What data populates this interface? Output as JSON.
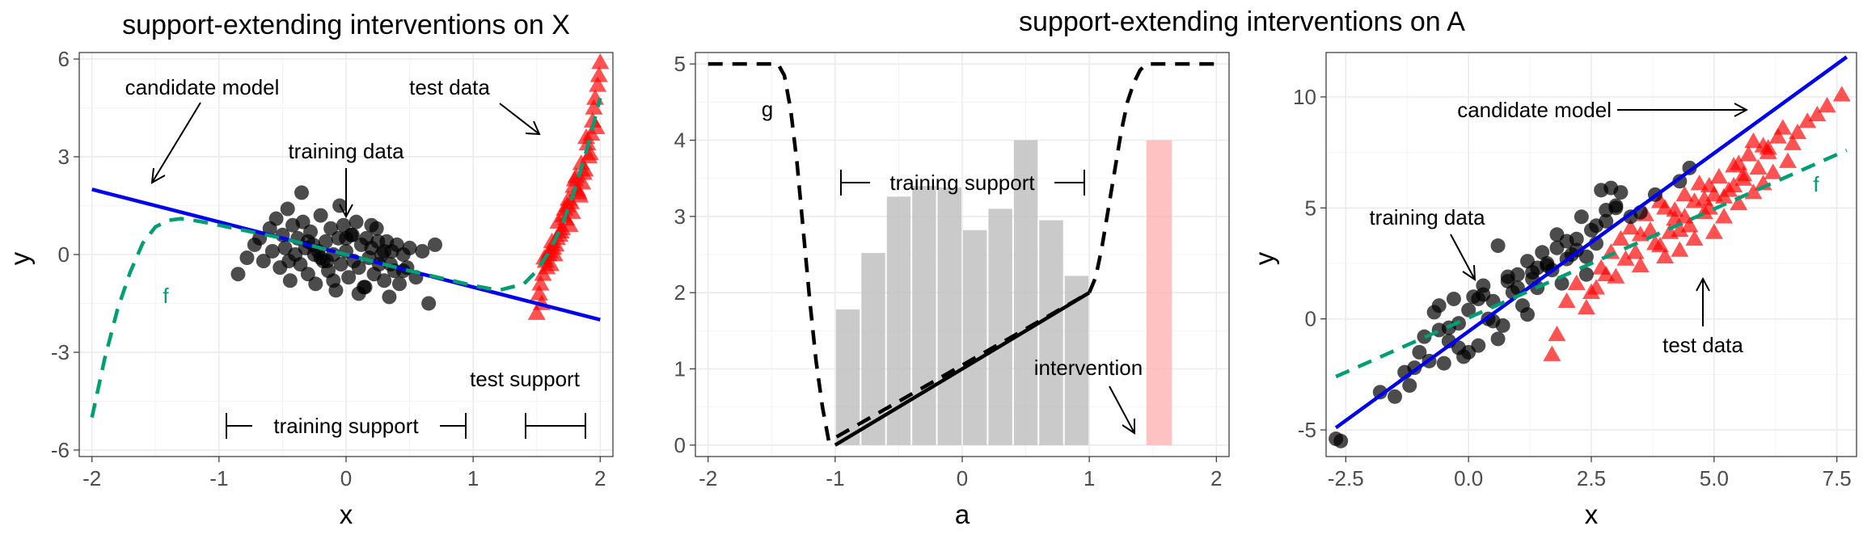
{
  "figure": {
    "title_left": "support-extending interventions on X",
    "title_right": "support-extending interventions on A"
  },
  "colors": {
    "training": "#000000",
    "test": "#ff0000",
    "model": "#0000ee",
    "f_curve": "#009e73",
    "hist_gray": "#bdbdbd",
    "hist_red": "#ffb3b3"
  },
  "chart_data": [
    {
      "type": "scatter",
      "xlabel": "x",
      "ylabel": "y",
      "xlim": [
        -2.1,
        2.1
      ],
      "ylim": [
        -6.2,
        6.2
      ],
      "x_ticks": [
        {
          "value": -2,
          "label": "-2"
        },
        {
          "value": -1,
          "label": "-1"
        },
        {
          "value": 0,
          "label": "0"
        },
        {
          "value": 1,
          "label": "1"
        },
        {
          "value": 2,
          "label": "2"
        }
      ],
      "y_ticks": [
        {
          "value": -6,
          "label": "-6"
        },
        {
          "value": -3,
          "label": "-3"
        },
        {
          "value": 0,
          "label": "0"
        },
        {
          "value": 3,
          "label": "3"
        },
        {
          "value": 6,
          "label": "6"
        }
      ],
      "candidate_model": {
        "x": [
          -2,
          2
        ],
        "y": [
          2,
          -2
        ]
      },
      "f_curve": {
        "x": [
          -2.0,
          -1.9,
          -1.8,
          -1.7,
          -1.6,
          -1.5,
          -1.4,
          -1.3,
          -1.2,
          -1.1,
          -1.0,
          -0.5,
          0.0,
          0.5,
          1.0,
          1.2,
          1.4,
          1.5,
          1.6,
          1.7,
          1.8,
          1.9,
          2.0
        ],
        "y": [
          -5.0,
          -3.2,
          -1.7,
          -0.55,
          0.35,
          0.85,
          1.05,
          1.1,
          1.05,
          0.98,
          0.9,
          0.5,
          0.0,
          -0.5,
          -0.95,
          -1.1,
          -0.9,
          -0.5,
          0.1,
          0.9,
          2.0,
          3.3,
          4.8
        ]
      },
      "training_data": {
        "x": [
          -0.85,
          -0.78,
          -0.72,
          -0.68,
          -0.65,
          -0.6,
          -0.58,
          -0.55,
          -0.52,
          -0.5,
          -0.48,
          -0.46,
          -0.44,
          -0.42,
          -0.4,
          -0.38,
          -0.36,
          -0.34,
          -0.32,
          -0.3,
          -0.28,
          -0.26,
          -0.24,
          -0.22,
          -0.2,
          -0.18,
          -0.16,
          -0.14,
          -0.12,
          -0.1,
          -0.08,
          -0.06,
          -0.04,
          -0.02,
          0.0,
          0.02,
          0.04,
          0.06,
          0.08,
          0.1,
          0.12,
          0.14,
          0.16,
          0.18,
          0.2,
          0.22,
          0.24,
          0.26,
          0.28,
          0.3,
          0.32,
          0.34,
          0.36,
          0.38,
          0.4,
          0.42,
          0.45,
          0.48,
          0.5,
          0.55,
          0.6,
          0.65,
          0.7,
          -0.35,
          -0.15,
          0.05,
          0.15,
          0.25,
          -0.25,
          0.35,
          -0.45,
          0.45,
          -0.05,
          0.1,
          -0.3,
          0.3,
          -0.1,
          0.2,
          -0.2,
          0.0
        ],
        "y": [
          -0.6,
          -0.1,
          0.3,
          0.5,
          -0.2,
          0.8,
          0.1,
          1.1,
          -0.4,
          0.6,
          0.2,
          1.4,
          -0.8,
          0.9,
          0.0,
          0.5,
          -0.3,
          1.0,
          0.2,
          -0.6,
          0.7,
          0.3,
          -0.9,
          0.1,
          1.2,
          -0.2,
          0.4,
          -0.5,
          0.8,
          0.0,
          -1.1,
          0.5,
          -0.3,
          0.9,
          0.1,
          -0.7,
          0.6,
          -0.2,
          1.0,
          -0.4,
          0.3,
          -1.0,
          0.5,
          -0.1,
          0.2,
          -0.6,
          0.8,
          -0.3,
          0.0,
          -0.8,
          0.4,
          -1.3,
          0.1,
          -0.5,
          0.3,
          -0.9,
          0.0,
          -0.4,
          0.2,
          -0.7,
          0.1,
          -1.5,
          0.3,
          1.9,
          -0.2,
          0.6,
          -1.0,
          0.4,
          0.0,
          -0.3,
          -0.2,
          -0.5,
          1.5,
          -1.2,
          0.4,
          0.1,
          -0.8,
          0.9,
          -0.1,
          0.5
        ]
      },
      "test_data": {
        "x": [
          1.5,
          1.52,
          1.55,
          1.57,
          1.6,
          1.62,
          1.65,
          1.67,
          1.7,
          1.72,
          1.75,
          1.77,
          1.8,
          1.82,
          1.85,
          1.87,
          1.9,
          1.92,
          1.95,
          1.97,
          2.0,
          1.53,
          1.58,
          1.63,
          1.68,
          1.73,
          1.78,
          1.83,
          1.88,
          1.93,
          1.98,
          1.56,
          1.66,
          1.76,
          1.86,
          1.96,
          1.61,
          1.71,
          1.81,
          1.91,
          1.54,
          1.64,
          1.74,
          1.84,
          1.94,
          1.99,
          1.69,
          1.79,
          1.89,
          1.59
        ],
        "y": [
          -1.8,
          -1.2,
          -0.6,
          -0.2,
          0.1,
          0.4,
          0.3,
          1.0,
          0.8,
          1.4,
          1.7,
          1.6,
          2.3,
          2.0,
          2.8,
          2.5,
          3.4,
          3.1,
          4.5,
          3.9,
          5.9,
          -0.9,
          -0.4,
          0.2,
          0.6,
          1.1,
          1.3,
          1.9,
          2.6,
          3.7,
          5.2,
          -0.1,
          0.5,
          0.9,
          2.2,
          4.8,
          -0.3,
          1.2,
          2.4,
          3.0,
          -1.5,
          0.0,
          1.5,
          1.8,
          4.1,
          5.5,
          0.7,
          2.1,
          3.6,
          0.0
        ]
      },
      "annotations": {
        "candidate_model": "candidate model",
        "test_data": "test data",
        "training_data": "training data",
        "f_label": "f",
        "training_support": "training support",
        "test_support": "test support"
      }
    },
    {
      "type": "bar",
      "xlabel": "a",
      "ylabel": "",
      "xlim": [
        -2.1,
        2.1
      ],
      "ylim": [
        -0.15,
        5.15
      ],
      "x_ticks": [
        {
          "value": -2,
          "label": "-2"
        },
        {
          "value": -1,
          "label": "-1"
        },
        {
          "value": 0,
          "label": "0"
        },
        {
          "value": 1,
          "label": "1"
        },
        {
          "value": 2,
          "label": "2"
        }
      ],
      "y_ticks": [
        {
          "value": 0,
          "label": "0"
        },
        {
          "value": 1,
          "label": "1"
        },
        {
          "value": 2,
          "label": "2"
        },
        {
          "value": 3,
          "label": "3"
        },
        {
          "value": 4,
          "label": "4"
        },
        {
          "value": 5,
          "label": "5"
        }
      ],
      "training_histogram": {
        "bin_width": 0.2,
        "bin_starts": [
          -1.0,
          -0.8,
          -0.6,
          -0.4,
          -0.2,
          0.0,
          0.2,
          0.4,
          0.6,
          0.8
        ],
        "heights": [
          1.78,
          2.52,
          3.26,
          3.4,
          3.38,
          2.82,
          3.1,
          4.0,
          2.95,
          2.22
        ]
      },
      "intervention_bar": {
        "start": 1.45,
        "width": 0.2,
        "height": 4.0
      },
      "g_curve": {
        "x": [
          -2.0,
          -1.6,
          -1.45,
          -1.4,
          -1.35,
          -1.3,
          -1.25,
          -1.2,
          -1.15,
          -1.1,
          -1.05,
          1.0,
          1.05,
          1.1,
          1.15,
          1.2,
          1.25,
          1.3,
          1.35,
          1.4,
          1.45,
          1.5,
          1.6,
          2.0
        ],
        "y": [
          5.0,
          5.0,
          5.0,
          4.85,
          4.4,
          3.7,
          2.8,
          1.9,
          1.1,
          0.5,
          0.05,
          2.0,
          2.2,
          2.6,
          3.1,
          3.6,
          4.1,
          4.5,
          4.75,
          4.92,
          5.0,
          5.0,
          5.0,
          5.0
        ]
      },
      "solid_line": {
        "x": [
          -1,
          1
        ],
        "y": [
          0,
          2
        ]
      },
      "annotations": {
        "g_label": "g",
        "training_support": "training support",
        "intervention": "intervention"
      }
    },
    {
      "type": "scatter",
      "xlabel": "x",
      "ylabel": "y",
      "xlim": [
        -2.9,
        7.9
      ],
      "ylim": [
        -6.2,
        12.0
      ],
      "x_ticks": [
        {
          "value": -2.5,
          "label": "-2.5"
        },
        {
          "value": 0.0,
          "label": "0.0"
        },
        {
          "value": 2.5,
          "label": "2.5"
        },
        {
          "value": 5.0,
          "label": "5.0"
        },
        {
          "value": 7.5,
          "label": "7.5"
        }
      ],
      "y_ticks": [
        {
          "value": -5,
          "label": "-5"
        },
        {
          "value": 0,
          "label": "0"
        },
        {
          "value": 5,
          "label": "5"
        },
        {
          "value": 10,
          "label": "10"
        }
      ],
      "candidate_model": {
        "x": [
          -2.7,
          7.7
        ],
        "y": [
          -4.9,
          11.8
        ]
      },
      "f_curve": {
        "x": [
          -2.7,
          7.7
        ],
        "y": [
          -2.6,
          7.6
        ]
      },
      "training_data": {
        "x": [
          -2.6,
          -2.7,
          -1.8,
          -1.5,
          -1.3,
          -1.1,
          -1.0,
          -0.9,
          -0.8,
          -0.7,
          -0.6,
          -0.5,
          -0.4,
          -0.3,
          -0.2,
          -0.1,
          0.0,
          0.1,
          0.2,
          0.3,
          0.4,
          0.5,
          0.6,
          0.7,
          0.8,
          0.9,
          1.0,
          1.1,
          1.2,
          1.3,
          1.4,
          1.5,
          1.6,
          1.7,
          1.8,
          1.9,
          2.0,
          2.1,
          2.2,
          2.3,
          2.4,
          2.5,
          2.6,
          2.7,
          2.8,
          2.9,
          3.0,
          3.1,
          3.3,
          3.5,
          3.8,
          4.3,
          4.5,
          -0.4,
          0.2,
          0.8,
          1.4,
          2.0,
          2.6,
          -1.2,
          -0.2,
          0.5,
          1.2,
          1.8,
          2.4,
          3.0,
          -0.6,
          0.3,
          1.0,
          1.6,
          2.2,
          2.8,
          0.0,
          0.6,
          1.3
        ],
        "y": [
          -5.5,
          -5.4,
          -3.3,
          -3.5,
          -2.4,
          -2.2,
          -1.5,
          -0.8,
          -1.9,
          0.3,
          -0.5,
          -2.0,
          -1.0,
          0.9,
          -0.2,
          -1.7,
          0.4,
          1.0,
          -1.2,
          1.5,
          0.0,
          0.8,
          3.3,
          -0.3,
          1.7,
          1.2,
          2.0,
          0.6,
          2.6,
          2.1,
          1.4,
          3.0,
          2.5,
          2.2,
          3.8,
          1.6,
          3.5,
          2.9,
          3.1,
          4.6,
          2.8,
          4.0,
          3.4,
          5.8,
          4.9,
          5.9,
          5.0,
          5.7,
          4.6,
          4.8,
          5.6,
          6.2,
          6.8,
          -0.4,
          0.9,
          1.9,
          2.3,
          2.7,
          4.2,
          -3.0,
          -1.3,
          -0.1,
          0.2,
          3.2,
          2.0,
          5.1,
          0.6,
          1.1,
          1.4,
          2.4,
          3.6,
          4.4,
          -1.5,
          -0.9,
          1.8
        ]
      },
      "test_data": {
        "x": [
          1.7,
          1.8,
          2.0,
          2.2,
          2.4,
          2.5,
          2.7,
          2.9,
          3.0,
          3.2,
          3.3,
          3.5,
          3.6,
          3.8,
          3.9,
          4.0,
          4.1,
          4.2,
          4.3,
          4.4,
          4.5,
          4.6,
          4.7,
          4.8,
          4.9,
          5.0,
          5.1,
          5.2,
          5.3,
          5.4,
          5.5,
          5.6,
          5.7,
          5.8,
          5.9,
          6.0,
          6.1,
          6.2,
          6.3,
          6.5,
          6.7,
          6.9,
          7.1,
          7.3,
          7.6,
          3.1,
          3.4,
          3.7,
          4.0,
          4.3,
          4.6,
          4.9,
          5.2,
          5.5,
          5.8,
          6.1,
          6.4,
          3.5,
          4.2,
          4.8,
          5.4,
          6.0,
          2.6,
          2.8,
          3.9,
          4.4,
          5.0,
          5.6,
          6.6
        ],
        "y": [
          -1.6,
          -0.7,
          0.8,
          1.6,
          0.5,
          1.2,
          2.3,
          3.0,
          1.9,
          2.7,
          4.1,
          2.4,
          4.7,
          3.4,
          5.3,
          2.8,
          3.9,
          4.5,
          3.1,
          5.6,
          4.2,
          3.6,
          6.1,
          4.8,
          5.0,
          3.9,
          6.4,
          4.6,
          5.8,
          6.9,
          5.2,
          6.3,
          7.4,
          5.7,
          6.8,
          6.1,
          7.7,
          6.6,
          8.2,
          7.1,
          8.4,
          8.9,
          9.2,
          9.6,
          10.1,
          3.6,
          3.0,
          4.0,
          5.0,
          4.0,
          5.3,
          6.0,
          5.5,
          7.0,
          8.0,
          7.5,
          8.6,
          3.8,
          4.9,
          5.4,
          6.0,
          7.8,
          1.4,
          2.0,
          3.3,
          4.6,
          5.6,
          6.5,
          7.9
        ]
      },
      "annotations": {
        "candidate_model": "candidate model",
        "training_data": "training data",
        "test_data": "test data",
        "f_label": "f"
      }
    }
  ]
}
